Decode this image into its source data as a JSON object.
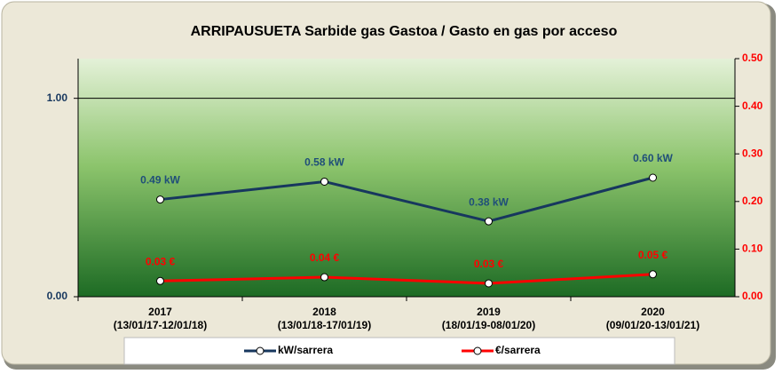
{
  "chart_data": {
    "type": "line",
    "title": "ARRIPAUSUETA Sarbide gas Gastoa  / Gasto en gas por acceso",
    "categories": [
      "2017",
      "2018",
      "2019",
      "2020"
    ],
    "category_periods": [
      "(13/01/17-12/01/18)",
      "(13/01/18-17/01/19)",
      "(18/01/19-08/01/20)",
      "(09/01/20-13/01/21)"
    ],
    "ylim": [
      0,
      1.2
    ],
    "yticks": [
      {
        "value": 0,
        "label": "0.00"
      },
      {
        "value": 1,
        "label": "1.00"
      }
    ],
    "y2lim": [
      0,
      0.5
    ],
    "y2ticks": [
      {
        "value": 0,
        "label": "0.00"
      },
      {
        "value": 0.1,
        "label": "0.10"
      },
      {
        "value": 0.2,
        "label": "0.20"
      },
      {
        "value": 0.3,
        "label": "0.30"
      },
      {
        "value": 0.4,
        "label": "0.40"
      },
      {
        "value": 0.5,
        "label": "0.50"
      }
    ],
    "grid": true,
    "legend": "bottom",
    "series": [
      {
        "name": "kW/sarrera",
        "color": "#17375e",
        "values": [
          0.49,
          0.58,
          0.38,
          0.6
        ],
        "value_labels": [
          "0.49 kW",
          "0.58 kW",
          "0.38 kW",
          "0.60 kW"
        ]
      },
      {
        "name": "€/sarrera",
        "color": "#ff0000",
        "axis": "y2",
        "values": [
          0.033,
          0.041,
          0.028,
          0.047
        ],
        "value_labels": [
          "0.03 €",
          "0.04 €",
          "0.03 €",
          "0.05 €"
        ]
      }
    ]
  }
}
